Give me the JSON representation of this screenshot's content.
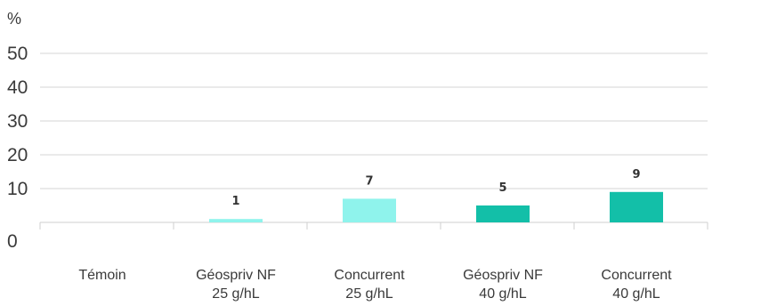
{
  "chart_data": {
    "type": "bar",
    "ylabel": "%",
    "ylim": [
      0,
      50
    ],
    "yticks": [
      "0",
      "10",
      "20",
      "30",
      "40",
      "50"
    ],
    "grid": true,
    "categories": [
      [
        "Témoin"
      ],
      [
        "Géospriv NF",
        "25 g/hL"
      ],
      [
        "Concurrent",
        "25 g/hL"
      ],
      [
        "Géospriv NF",
        "40 g/hL"
      ],
      [
        "Concurrent",
        "40 g/hL"
      ]
    ],
    "values": [
      null,
      1,
      7,
      5,
      9
    ],
    "data_labels": [
      "",
      "1",
      "7",
      "5",
      "9"
    ],
    "colors": [
      "#8ff3ec",
      "#8ff3ec",
      "#8ff3ec",
      "#13bfa8",
      "#13bfa8"
    ]
  }
}
